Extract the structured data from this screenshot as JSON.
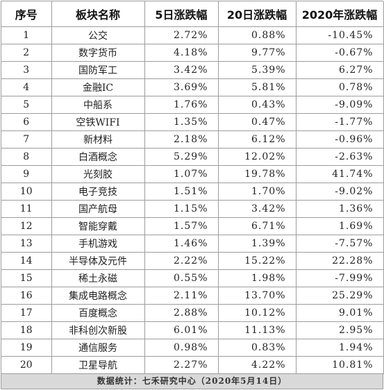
{
  "table": {
    "headers": [
      "序号",
      "板块名称",
      "5日涨跌幅",
      "20日涨跌幅",
      "2020年涨跌幅"
    ],
    "rows": [
      [
        "1",
        "公交",
        "2.72%",
        "0.88%",
        "-10.45%"
      ],
      [
        "2",
        "数字货币",
        "4.18%",
        "9.77%",
        "-0.67%"
      ],
      [
        "3",
        "国防军工",
        "3.42%",
        "5.39%",
        "6.27%"
      ],
      [
        "4",
        "金融IC",
        "3.69%",
        "5.81%",
        "0.78%"
      ],
      [
        "5",
        "中船系",
        "1.76%",
        "0.43%",
        "-9.09%"
      ],
      [
        "6",
        "空铁WIFI",
        "1.35%",
        "0.47%",
        "-1.77%"
      ],
      [
        "7",
        "新材料",
        "2.18%",
        "6.12%",
        "-0.96%"
      ],
      [
        "8",
        "白酒概念",
        "5.29%",
        "12.02%",
        "-2.63%"
      ],
      [
        "9",
        "光刻胶",
        "1.07%",
        "19.78%",
        "41.74%"
      ],
      [
        "10",
        "电子竞技",
        "1.51%",
        "1.70%",
        "-9.02%"
      ],
      [
        "11",
        "国产航母",
        "1.15%",
        "3.42%",
        "1.36%"
      ],
      [
        "12",
        "智能穿戴",
        "1.57%",
        "6.71%",
        "1.69%"
      ],
      [
        "13",
        "手机游戏",
        "1.46%",
        "1.39%",
        "-7.57%"
      ],
      [
        "14",
        "半导体及元件",
        "2.22%",
        "15.22%",
        "22.28%"
      ],
      [
        "15",
        "稀土永磁",
        "0.55%",
        "1.98%",
        "-7.99%"
      ],
      [
        "16",
        "集成电路概念",
        "2.11%",
        "13.70%",
        "25.29%"
      ],
      [
        "17",
        "百度概念",
        "2.88%",
        "10.12%",
        "9.01%"
      ],
      [
        "18",
        "非科创次新股",
        "6.01%",
        "11.13%",
        "2.95%"
      ],
      [
        "19",
        "通信服务",
        "0.98%",
        "0.83%",
        "1.94%"
      ],
      [
        "20",
        "卫星导航",
        "2.27%",
        "4.22%",
        "10.81%"
      ]
    ]
  },
  "footer": {
    "text": "数据统计：七禾研究中心（2020年5月14日）"
  }
}
